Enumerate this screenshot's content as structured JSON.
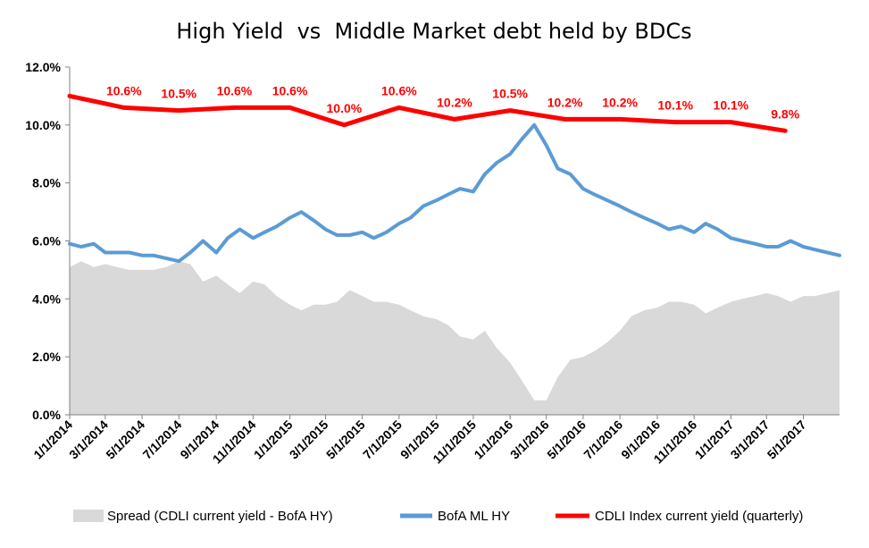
{
  "chart_data": {
    "type": "line",
    "title": "High Yield  vs  Middle Market debt held by BDCs",
    "y_axis": {
      "min": 0,
      "max": 12,
      "step": 2,
      "tick_labels": [
        "0.0%",
        "2.0%",
        "4.0%",
        "6.0%",
        "8.0%",
        "10.0%",
        "12.0%"
      ]
    },
    "x_axis": {
      "start": "2014-01-01",
      "end": "2017-06-30",
      "tick_labels": [
        "1/1/2014",
        "3/1/2014",
        "5/1/2014",
        "7/1/2014",
        "9/1/2014",
        "11/1/2014",
        "1/1/2015",
        "3/1/2015",
        "5/1/2015",
        "7/1/2015",
        "9/1/2015",
        "11/1/2015",
        "1/1/2016",
        "3/1/2016",
        "5/1/2016",
        "7/1/2016",
        "9/1/2016",
        "11/1/2016",
        "1/1/2017",
        "3/1/2017",
        "5/1/2017"
      ],
      "tick_dates": [
        "2014-01-01",
        "2014-03-01",
        "2014-05-01",
        "2014-07-01",
        "2014-09-01",
        "2014-11-01",
        "2015-01-01",
        "2015-03-01",
        "2015-05-01",
        "2015-07-01",
        "2015-09-01",
        "2015-11-01",
        "2016-01-01",
        "2016-03-01",
        "2016-05-01",
        "2016-07-01",
        "2016-09-01",
        "2016-11-01",
        "2017-01-01",
        "2017-03-01",
        "2017-05-01"
      ]
    },
    "grid": false,
    "legend_position": "bottom",
    "series": [
      {
        "name": "Spread (CDLI current yield - BofA HY)",
        "type": "area",
        "color": "#d9d9d9",
        "x": [
          "2014-01-01",
          "2014-01-20",
          "2014-02-10",
          "2014-03-01",
          "2014-03-20",
          "2014-04-10",
          "2014-05-01",
          "2014-05-20",
          "2014-06-10",
          "2014-07-01",
          "2014-07-20",
          "2014-08-10",
          "2014-09-01",
          "2014-09-20",
          "2014-10-10",
          "2014-11-01",
          "2014-11-20",
          "2014-12-10",
          "2015-01-01",
          "2015-01-20",
          "2015-02-10",
          "2015-03-01",
          "2015-03-20",
          "2015-04-10",
          "2015-05-01",
          "2015-05-20",
          "2015-06-10",
          "2015-07-01",
          "2015-07-20",
          "2015-08-10",
          "2015-09-01",
          "2015-09-20",
          "2015-10-10",
          "2015-11-01",
          "2015-11-20",
          "2015-12-10",
          "2016-01-01",
          "2016-01-20",
          "2016-02-10",
          "2016-03-01",
          "2016-03-20",
          "2016-04-10",
          "2016-05-01",
          "2016-05-20",
          "2016-06-10",
          "2016-07-01",
          "2016-07-20",
          "2016-08-10",
          "2016-09-01",
          "2016-09-20",
          "2016-10-10",
          "2016-11-01",
          "2016-11-20",
          "2016-12-10",
          "2017-01-01",
          "2017-01-20",
          "2017-02-10",
          "2017-03-01",
          "2017-03-20",
          "2017-04-10",
          "2017-05-01",
          "2017-05-20",
          "2017-06-10",
          "2017-06-30"
        ],
        "values": [
          5.1,
          5.3,
          5.1,
          5.2,
          5.1,
          5.0,
          5.0,
          5.0,
          5.1,
          5.3,
          5.2,
          4.6,
          4.8,
          4.5,
          4.2,
          4.6,
          4.5,
          4.1,
          3.8,
          3.6,
          3.8,
          3.8,
          3.9,
          4.3,
          4.1,
          3.9,
          3.9,
          3.8,
          3.6,
          3.4,
          3.3,
          3.1,
          2.7,
          2.6,
          2.9,
          2.3,
          1.8,
          1.2,
          0.5,
          0.5,
          1.3,
          1.9,
          2.0,
          2.2,
          2.5,
          2.9,
          3.4,
          3.6,
          3.7,
          3.9,
          3.9,
          3.8,
          3.5,
          3.7,
          3.9,
          4.0,
          4.1,
          4.2,
          4.1,
          3.9,
          4.1,
          4.1,
          4.2,
          4.3
        ]
      },
      {
        "name": "BofA ML HY",
        "type": "line",
        "color": "#5b9bd5",
        "x": [
          "2014-01-01",
          "2014-01-20",
          "2014-02-10",
          "2014-03-01",
          "2014-03-20",
          "2014-04-10",
          "2014-05-01",
          "2014-05-20",
          "2014-06-10",
          "2014-07-01",
          "2014-07-20",
          "2014-08-10",
          "2014-09-01",
          "2014-09-20",
          "2014-10-10",
          "2014-11-01",
          "2014-11-20",
          "2014-12-10",
          "2015-01-01",
          "2015-01-20",
          "2015-02-10",
          "2015-03-01",
          "2015-03-20",
          "2015-04-10",
          "2015-05-01",
          "2015-05-20",
          "2015-06-10",
          "2015-07-01",
          "2015-07-20",
          "2015-08-10",
          "2015-09-01",
          "2015-09-20",
          "2015-10-10",
          "2015-11-01",
          "2015-11-20",
          "2015-12-10",
          "2016-01-01",
          "2016-01-20",
          "2016-02-10",
          "2016-03-01",
          "2016-03-20",
          "2016-04-10",
          "2016-05-01",
          "2016-05-20",
          "2016-06-10",
          "2016-07-01",
          "2016-07-20",
          "2016-08-10",
          "2016-09-01",
          "2016-09-20",
          "2016-10-10",
          "2016-11-01",
          "2016-11-20",
          "2016-12-10",
          "2017-01-01",
          "2017-01-20",
          "2017-02-10",
          "2017-03-01",
          "2017-03-20",
          "2017-04-10",
          "2017-05-01",
          "2017-05-20",
          "2017-06-10",
          "2017-06-30"
        ],
        "values": [
          5.9,
          5.8,
          5.9,
          5.6,
          5.6,
          5.6,
          5.5,
          5.5,
          5.4,
          5.3,
          5.6,
          6.0,
          5.6,
          6.1,
          6.4,
          6.1,
          6.3,
          6.5,
          6.8,
          7.0,
          6.7,
          6.4,
          6.2,
          6.2,
          6.3,
          6.1,
          6.3,
          6.6,
          6.8,
          7.2,
          7.4,
          7.6,
          7.8,
          7.7,
          8.3,
          8.7,
          9.0,
          9.5,
          10.0,
          9.3,
          8.5,
          8.3,
          7.8,
          7.6,
          7.4,
          7.2,
          7.0,
          6.8,
          6.6,
          6.4,
          6.5,
          6.3,
          6.6,
          6.4,
          6.1,
          6.0,
          5.9,
          5.8,
          5.8,
          6.0,
          5.8,
          5.7,
          5.6,
          5.5
        ]
      },
      {
        "name": "CDLI Index current yield (quarterly)",
        "type": "line",
        "color": "#ff0000",
        "x": [
          "2014-01-01",
          "2014-04-01",
          "2014-07-01",
          "2014-10-01",
          "2015-01-01",
          "2015-04-01",
          "2015-07-01",
          "2015-10-01",
          "2016-01-01",
          "2016-04-01",
          "2016-07-01",
          "2016-10-01",
          "2017-01-01",
          "2017-04-01"
        ],
        "values": [
          11.0,
          10.6,
          10.5,
          10.6,
          10.6,
          10.0,
          10.6,
          10.2,
          10.5,
          10.2,
          10.2,
          10.1,
          10.1,
          9.8
        ]
      }
    ],
    "annotations": [
      {
        "text": "10.6%",
        "x": "2014-04-01",
        "y": 10.6
      },
      {
        "text": "10.5%",
        "x": "2014-07-01",
        "y": 10.5
      },
      {
        "text": "10.6%",
        "x": "2014-10-01",
        "y": 10.6
      },
      {
        "text": "10.6%",
        "x": "2015-01-01",
        "y": 10.6
      },
      {
        "text": "10.0%",
        "x": "2015-04-01",
        "y": 10.0
      },
      {
        "text": "10.6%",
        "x": "2015-07-01",
        "y": 10.6
      },
      {
        "text": "10.2%",
        "x": "2015-10-01",
        "y": 10.2
      },
      {
        "text": "10.5%",
        "x": "2016-01-01",
        "y": 10.5
      },
      {
        "text": "10.2%",
        "x": "2016-04-01",
        "y": 10.2
      },
      {
        "text": "10.2%",
        "x": "2016-07-01",
        "y": 10.2
      },
      {
        "text": "10.1%",
        "x": "2016-10-01",
        "y": 10.1
      },
      {
        "text": "10.1%",
        "x": "2017-01-01",
        "y": 10.1
      },
      {
        "text": "9.8%",
        "x": "2017-04-01",
        "y": 9.8
      }
    ]
  }
}
